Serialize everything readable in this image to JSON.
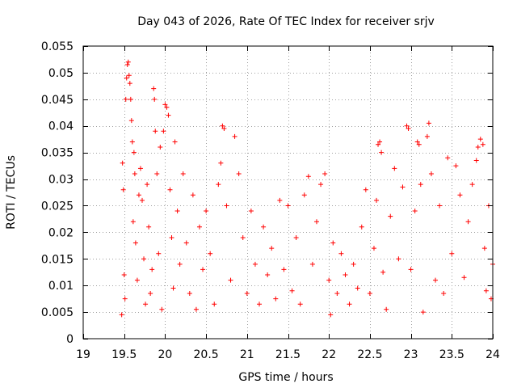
{
  "chart_data": {
    "type": "scatter",
    "title": "Day 043 of 2026, Rate Of TEC Index for receiver srjv",
    "xlabel": "GPS time / hours",
    "ylabel": "ROTI / TECUs",
    "xlim": [
      19,
      24
    ],
    "ylim": [
      0,
      0.055
    ],
    "xticks": [
      19,
      19.5,
      20,
      20.5,
      21,
      21.5,
      22,
      22.5,
      23,
      23.5,
      24
    ],
    "xtick_labels": [
      "19",
      "19.5",
      "20",
      "20.5",
      "21",
      "21.5",
      "22",
      "22.5",
      "23",
      "23.5",
      "24"
    ],
    "yticks": [
      0,
      0.005,
      0.01,
      0.015,
      0.02,
      0.025,
      0.03,
      0.035,
      0.04,
      0.045,
      0.05,
      0.055
    ],
    "ytick_labels": [
      "0",
      "0.005",
      "0.01",
      "0.015",
      "0.02",
      "0.025",
      "0.03",
      "0.035",
      "0.04",
      "0.045",
      "0.05",
      "0.055"
    ],
    "grid": true,
    "marker": "+",
    "color": "#ff0000",
    "series": [
      {
        "name": "ROTI",
        "points": [
          [
            19.47,
            0.0045
          ],
          [
            19.48,
            0.033
          ],
          [
            19.49,
            0.028
          ],
          [
            19.5,
            0.012
          ],
          [
            19.51,
            0.0075
          ],
          [
            19.52,
            0.045
          ],
          [
            19.53,
            0.049
          ],
          [
            19.54,
            0.0515
          ],
          [
            19.55,
            0.052
          ],
          [
            19.56,
            0.0495
          ],
          [
            19.57,
            0.048
          ],
          [
            19.58,
            0.045
          ],
          [
            19.59,
            0.041
          ],
          [
            19.6,
            0.037
          ],
          [
            19.61,
            0.022
          ],
          [
            19.62,
            0.035
          ],
          [
            19.63,
            0.031
          ],
          [
            19.64,
            0.018
          ],
          [
            19.66,
            0.011
          ],
          [
            19.68,
            0.027
          ],
          [
            19.7,
            0.032
          ],
          [
            19.72,
            0.026
          ],
          [
            19.74,
            0.015
          ],
          [
            19.76,
            0.0065
          ],
          [
            19.78,
            0.029
          ],
          [
            19.8,
            0.021
          ],
          [
            19.82,
            0.0085
          ],
          [
            19.84,
            0.013
          ],
          [
            19.86,
            0.047
          ],
          [
            19.87,
            0.045
          ],
          [
            19.88,
            0.039
          ],
          [
            19.9,
            0.031
          ],
          [
            19.92,
            0.016
          ],
          [
            19.94,
            0.036
          ],
          [
            19.96,
            0.0055
          ],
          [
            19.98,
            0.039
          ],
          [
            20.0,
            0.044
          ],
          [
            20.02,
            0.0435
          ],
          [
            20.04,
            0.042
          ],
          [
            20.06,
            0.028
          ],
          [
            20.08,
            0.019
          ],
          [
            20.1,
            0.0095
          ],
          [
            20.12,
            0.037
          ],
          [
            20.15,
            0.024
          ],
          [
            20.18,
            0.014
          ],
          [
            20.22,
            0.031
          ],
          [
            20.26,
            0.018
          ],
          [
            20.3,
            0.0085
          ],
          [
            20.34,
            0.027
          ],
          [
            20.38,
            0.0055
          ],
          [
            20.42,
            0.021
          ],
          [
            20.46,
            0.013
          ],
          [
            20.5,
            0.024
          ],
          [
            20.55,
            0.016
          ],
          [
            20.6,
            0.0065
          ],
          [
            20.65,
            0.029
          ],
          [
            20.68,
            0.033
          ],
          [
            20.7,
            0.04
          ],
          [
            20.72,
            0.0395
          ],
          [
            20.75,
            0.025
          ],
          [
            20.8,
            0.011
          ],
          [
            20.85,
            0.038
          ],
          [
            20.9,
            0.031
          ],
          [
            20.95,
            0.019
          ],
          [
            21.0,
            0.0085
          ],
          [
            21.05,
            0.024
          ],
          [
            21.1,
            0.014
          ],
          [
            21.15,
            0.0065
          ],
          [
            21.2,
            0.021
          ],
          [
            21.25,
            0.012
          ],
          [
            21.3,
            0.017
          ],
          [
            21.35,
            0.0075
          ],
          [
            21.4,
            0.026
          ],
          [
            21.45,
            0.013
          ],
          [
            21.5,
            0.025
          ],
          [
            21.55,
            0.009
          ],
          [
            21.6,
            0.019
          ],
          [
            21.65,
            0.0065
          ],
          [
            21.7,
            0.027
          ],
          [
            21.75,
            0.0305
          ],
          [
            21.8,
            0.014
          ],
          [
            21.85,
            0.022
          ],
          [
            21.9,
            0.029
          ],
          [
            21.95,
            0.031
          ],
          [
            22.0,
            0.011
          ],
          [
            22.02,
            0.0045
          ],
          [
            22.05,
            0.018
          ],
          [
            22.1,
            0.0085
          ],
          [
            22.15,
            0.016
          ],
          [
            22.2,
            0.012
          ],
          [
            22.25,
            0.0065
          ],
          [
            22.3,
            0.014
          ],
          [
            22.35,
            0.0095
          ],
          [
            22.4,
            0.021
          ],
          [
            22.45,
            0.028
          ],
          [
            22.5,
            0.0085
          ],
          [
            22.55,
            0.017
          ],
          [
            22.58,
            0.026
          ],
          [
            22.6,
            0.0365
          ],
          [
            22.62,
            0.037
          ],
          [
            22.64,
            0.035
          ],
          [
            22.66,
            0.0125
          ],
          [
            22.7,
            0.0055
          ],
          [
            22.75,
            0.023
          ],
          [
            22.8,
            0.032
          ],
          [
            22.85,
            0.015
          ],
          [
            22.9,
            0.0285
          ],
          [
            22.95,
            0.04
          ],
          [
            22.97,
            0.0395
          ],
          [
            23.0,
            0.013
          ],
          [
            23.05,
            0.024
          ],
          [
            23.08,
            0.037
          ],
          [
            23.1,
            0.0365
          ],
          [
            23.12,
            0.029
          ],
          [
            23.15,
            0.005
          ],
          [
            23.2,
            0.038
          ],
          [
            23.22,
            0.0405
          ],
          [
            23.25,
            0.031
          ],
          [
            23.3,
            0.011
          ],
          [
            23.35,
            0.025
          ],
          [
            23.4,
            0.0085
          ],
          [
            23.45,
            0.034
          ],
          [
            23.5,
            0.016
          ],
          [
            23.55,
            0.0325
          ],
          [
            23.6,
            0.027
          ],
          [
            23.65,
            0.0115
          ],
          [
            23.7,
            0.022
          ],
          [
            23.75,
            0.029
          ],
          [
            23.8,
            0.0335
          ],
          [
            23.82,
            0.036
          ],
          [
            23.85,
            0.0375
          ],
          [
            23.88,
            0.0365
          ],
          [
            23.9,
            0.017
          ],
          [
            23.92,
            0.009
          ],
          [
            23.95,
            0.025
          ],
          [
            23.98,
            0.0075
          ],
          [
            24.0,
            0.014
          ]
        ]
      }
    ]
  }
}
